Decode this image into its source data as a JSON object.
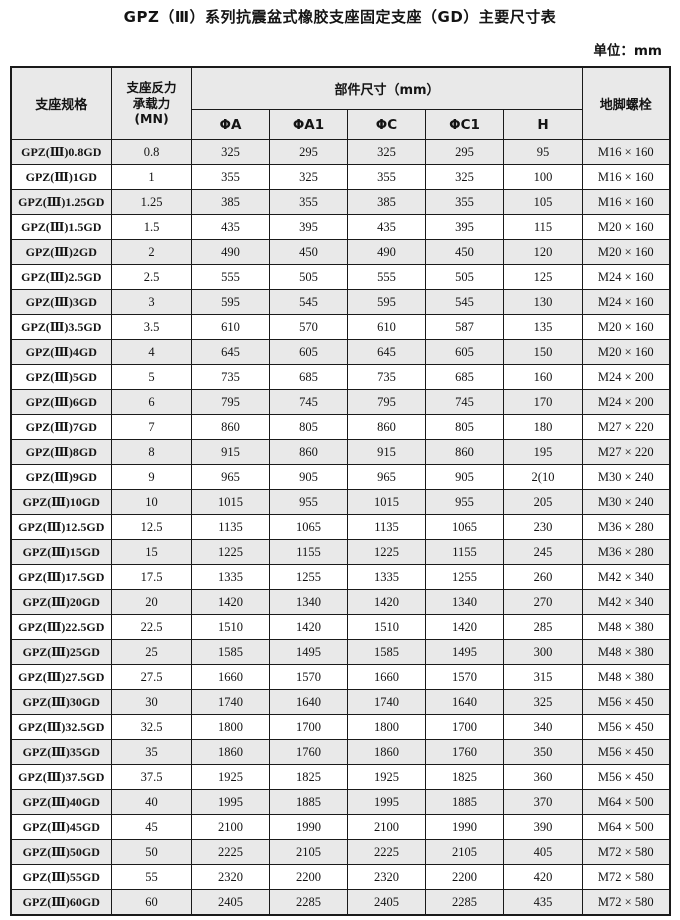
{
  "page": {
    "title": "GPZ（Ⅲ）系列抗震盆式橡胶支座固定支座（GD）主要尺寸表",
    "unit_label": "单位：mm"
  },
  "colors": {
    "row_shade": "#e9e9e9",
    "border": "#1a1a1a",
    "background": "#ffffff",
    "text": "#141414"
  },
  "table": {
    "col_spec": "支座规格",
    "col_load": "支座反力\n承载力\n(MN)",
    "group_dims": "部件尺寸（mm）",
    "sub_headers": [
      "ΦA",
      "ΦA1",
      "ΦC",
      "ΦC1",
      "H"
    ],
    "col_bolt": "地脚螺栓",
    "rows": [
      [
        "GPZ(Ⅲ)0.8GD",
        "0.8",
        "325",
        "295",
        "325",
        "295",
        "95",
        "M16 × 160"
      ],
      [
        "GPZ(Ⅲ)1GD",
        "1",
        "355",
        "325",
        "355",
        "325",
        "100",
        "M16 × 160"
      ],
      [
        "GPZ(Ⅲ)1.25GD",
        "1.25",
        "385",
        "355",
        "385",
        "355",
        "105",
        "M16 × 160"
      ],
      [
        "GPZ(Ⅲ)1.5GD",
        "1.5",
        "435",
        "395",
        "435",
        "395",
        "115",
        "M20 × 160"
      ],
      [
        "GPZ(Ⅲ)2GD",
        "2",
        "490",
        "450",
        "490",
        "450",
        "120",
        "M20 × 160"
      ],
      [
        "GPZ(Ⅲ)2.5GD",
        "2.5",
        "555",
        "505",
        "555",
        "505",
        "125",
        "M24 × 160"
      ],
      [
        "GPZ(Ⅲ)3GD",
        "3",
        "595",
        "545",
        "595",
        "545",
        "130",
        "M24 × 160"
      ],
      [
        "GPZ(Ⅲ)3.5GD",
        "3.5",
        "610",
        "570",
        "610",
        "587",
        "135",
        "M20 × 160"
      ],
      [
        "GPZ(Ⅲ)4GD",
        "4",
        "645",
        "605",
        "645",
        "605",
        "150",
        "M20 × 160"
      ],
      [
        "GPZ(Ⅲ)5GD",
        "5",
        "735",
        "685",
        "735",
        "685",
        "160",
        "M24 × 200"
      ],
      [
        "GPZ(Ⅲ)6GD",
        "6",
        "795",
        "745",
        "795",
        "745",
        "170",
        "M24 × 200"
      ],
      [
        "GPZ(Ⅲ)7GD",
        "7",
        "860",
        "805",
        "860",
        "805",
        "180",
        "M27 × 220"
      ],
      [
        "GPZ(Ⅲ)8GD",
        "8",
        "915",
        "860",
        "915",
        "860",
        "195",
        "M27 × 220"
      ],
      [
        "GPZ(Ⅲ)9GD",
        "9",
        "965",
        "905",
        "965",
        "905",
        "2(10",
        "M30 × 240"
      ],
      [
        "GPZ(Ⅲ)10GD",
        "10",
        "1015",
        "955",
        "1015",
        "955",
        "205",
        "M30 × 240"
      ],
      [
        "GPZ(Ⅲ)12.5GD",
        "12.5",
        "1135",
        "1065",
        "1135",
        "1065",
        "230",
        "M36 × 280"
      ],
      [
        "GPZ(Ⅲ)15GD",
        "15",
        "1225",
        "1155",
        "1225",
        "1155",
        "245",
        "M36 × 280"
      ],
      [
        "GPZ(Ⅲ)17.5GD",
        "17.5",
        "1335",
        "1255",
        "1335",
        "1255",
        "260",
        "M42 × 340"
      ],
      [
        "GPZ(Ⅲ)20GD",
        "20",
        "1420",
        "1340",
        "1420",
        "1340",
        "270",
        "M42 × 340"
      ],
      [
        "GPZ(Ⅲ)22.5GD",
        "22.5",
        "1510",
        "1420",
        "1510",
        "1420",
        "285",
        "M48 × 380"
      ],
      [
        "GPZ(Ⅲ)25GD",
        "25",
        "1585",
        "1495",
        "1585",
        "1495",
        "300",
        "M48 × 380"
      ],
      [
        "GPZ(Ⅲ)27.5GD",
        "27.5",
        "1660",
        "1570",
        "1660",
        "1570",
        "315",
        "M48 × 380"
      ],
      [
        "GPZ(Ⅲ)30GD",
        "30",
        "1740",
        "1640",
        "1740",
        "1640",
        "325",
        "M56 × 450"
      ],
      [
        "GPZ(Ⅲ)32.5GD",
        "32.5",
        "1800",
        "1700",
        "1800",
        "1700",
        "340",
        "M56 × 450"
      ],
      [
        "GPZ(Ⅲ)35GD",
        "35",
        "1860",
        "1760",
        "1860",
        "1760",
        "350",
        "M56 × 450"
      ],
      [
        "GPZ(Ⅲ)37.5GD",
        "37.5",
        "1925",
        "1825",
        "1925",
        "1825",
        "360",
        "M56 × 450"
      ],
      [
        "GPZ(Ⅲ)40GD",
        "40",
        "1995",
        "1885",
        "1995",
        "1885",
        "370",
        "M64 × 500"
      ],
      [
        "GPZ(Ⅲ)45GD",
        "45",
        "2100",
        "1990",
        "2100",
        "1990",
        "390",
        "M64 × 500"
      ],
      [
        "GPZ(Ⅲ)50GD",
        "50",
        "2225",
        "2105",
        "2225",
        "2105",
        "405",
        "M72 × 580"
      ],
      [
        "GPZ(Ⅲ)55GD",
        "55",
        "2320",
        "2200",
        "2320",
        "2200",
        "420",
        "M72 × 580"
      ],
      [
        "GPZ(Ⅲ)60GD",
        "60",
        "2405",
        "2285",
        "2405",
        "2285",
        "435",
        "M72 × 580"
      ]
    ]
  }
}
